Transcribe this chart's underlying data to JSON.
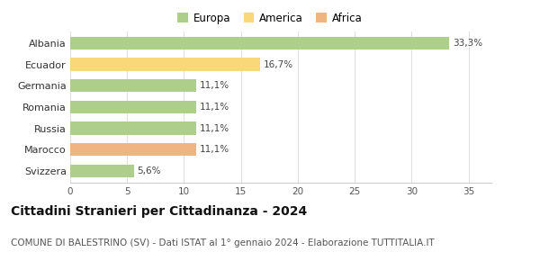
{
  "categories": [
    "Svizzera",
    "Marocco",
    "Russia",
    "Romania",
    "Germania",
    "Ecuador",
    "Albania"
  ],
  "values": [
    5.6,
    11.1,
    11.1,
    11.1,
    11.1,
    16.7,
    33.3
  ],
  "labels": [
    "5,6%",
    "11,1%",
    "11,1%",
    "11,1%",
    "11,1%",
    "16,7%",
    "33,3%"
  ],
  "colors": [
    "#aece8b",
    "#f0b482",
    "#aece8b",
    "#aece8b",
    "#aece8b",
    "#f9d87a",
    "#aece8b"
  ],
  "legend_items": [
    {
      "label": "Europa",
      "color": "#aece8b"
    },
    {
      "label": "America",
      "color": "#f9d87a"
    },
    {
      "label": "Africa",
      "color": "#f0b482"
    }
  ],
  "xlim": [
    0,
    37
  ],
  "xticks": [
    0,
    5,
    10,
    15,
    20,
    25,
    30,
    35
  ],
  "title": "Cittadini Stranieri per Cittadinanza - 2024",
  "subtitle": "COMUNE DI BALESTRINO (SV) - Dati ISTAT al 1° gennaio 2024 - Elaborazione TUTTITALIA.IT",
  "title_fontsize": 10,
  "subtitle_fontsize": 7.5,
  "background_color": "#ffffff",
  "bar_height": 0.6,
  "grid_color": "#e0e0e0"
}
